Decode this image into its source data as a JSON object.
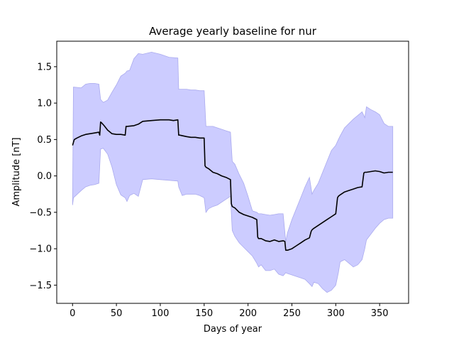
{
  "chart_data": {
    "type": "line",
    "title": "Average yearly baseline for nur",
    "xlabel": "Days of year",
    "ylabel": "Amplitude [nT]",
    "xlim": [
      -18,
      383
    ],
    "ylim": [
      -1.75,
      1.85
    ],
    "xticks": [
      0,
      50,
      100,
      150,
      200,
      250,
      300,
      350
    ],
    "yticks": [
      -1.5,
      -1.0,
      -0.5,
      0.0,
      0.5,
      1.0,
      1.5
    ],
    "ytick_labels": [
      "−1.5",
      "−1.0",
      "−0.5",
      "0.0",
      "0.5",
      "1.0",
      "1.5"
    ],
    "grid": false,
    "colors": {
      "mean": "#000000",
      "band": "#ccccff",
      "band_edge": "#aaaaee"
    },
    "series": [
      {
        "role": "mean",
        "x": [
          0,
          2,
          5,
          10,
          15,
          20,
          25,
          30,
          31,
          32,
          33,
          36,
          40,
          45,
          50,
          55,
          60,
          61,
          62,
          70,
          75,
          80,
          90,
          100,
          110,
          115,
          120,
          121,
          122,
          130,
          135,
          140,
          145,
          150,
          151,
          152,
          155,
          160,
          165,
          170,
          175,
          180,
          181,
          182,
          185,
          190,
          195,
          200,
          205,
          210,
          211,
          212,
          215,
          220,
          225,
          230,
          235,
          240,
          242,
          243,
          245,
          250,
          255,
          260,
          265,
          270,
          272,
          273,
          275,
          280,
          285,
          290,
          295,
          300,
          302,
          303,
          305,
          310,
          315,
          320,
          325,
          330,
          332,
          333,
          335,
          340,
          345,
          350,
          355,
          360,
          365
        ],
        "y": [
          0.42,
          0.5,
          0.52,
          0.55,
          0.57,
          0.58,
          0.59,
          0.6,
          0.56,
          0.74,
          0.73,
          0.69,
          0.63,
          0.58,
          0.57,
          0.57,
          0.56,
          0.68,
          0.68,
          0.69,
          0.71,
          0.75,
          0.76,
          0.77,
          0.77,
          0.76,
          0.77,
          0.56,
          0.56,
          0.54,
          0.53,
          0.53,
          0.52,
          0.52,
          0.14,
          0.12,
          0.1,
          0.05,
          0.03,
          0.0,
          -0.02,
          -0.05,
          -0.38,
          -0.42,
          -0.44,
          -0.5,
          -0.53,
          -0.55,
          -0.57,
          -0.6,
          -0.84,
          -0.86,
          -0.86,
          -0.89,
          -0.9,
          -0.88,
          -0.9,
          -0.89,
          -0.9,
          -1.02,
          -1.02,
          -1.0,
          -0.96,
          -0.92,
          -0.88,
          -0.85,
          -0.76,
          -0.74,
          -0.72,
          -0.68,
          -0.64,
          -0.6,
          -0.56,
          -0.52,
          -0.3,
          -0.28,
          -0.26,
          -0.22,
          -0.2,
          -0.18,
          -0.16,
          -0.15,
          0.04,
          0.05,
          0.05,
          0.06,
          0.07,
          0.06,
          0.04,
          0.05,
          0.05
        ]
      },
      {
        "role": "band",
        "x": [
          0,
          1,
          10,
          15,
          20,
          25,
          30,
          32,
          35,
          40,
          45,
          50,
          55,
          60,
          62,
          65,
          70,
          75,
          80,
          90,
          100,
          110,
          120,
          121,
          125,
          130,
          135,
          140,
          145,
          150,
          152,
          155,
          160,
          165,
          170,
          175,
          180,
          182,
          185,
          190,
          195,
          200,
          205,
          210,
          212,
          215,
          220,
          225,
          230,
          235,
          240,
          243,
          245,
          250,
          255,
          260,
          265,
          270,
          273,
          275,
          280,
          285,
          290,
          295,
          300,
          303,
          305,
          310,
          315,
          320,
          325,
          330,
          333,
          335,
          340,
          345,
          350,
          355,
          360,
          365
        ],
        "upper": [
          -0.4,
          1.22,
          1.21,
          1.26,
          1.27,
          1.27,
          1.26,
          1.05,
          1.01,
          1.04,
          1.15,
          1.25,
          1.37,
          1.41,
          1.44,
          1.45,
          1.61,
          1.68,
          1.67,
          1.7,
          1.67,
          1.63,
          1.62,
          1.19,
          1.19,
          1.19,
          1.18,
          1.18,
          1.17,
          1.17,
          0.68,
          0.68,
          0.68,
          0.66,
          0.64,
          0.62,
          0.6,
          0.2,
          0.16,
          0.02,
          -0.1,
          -0.28,
          -0.48,
          -0.5,
          -0.52,
          -0.52,
          -0.53,
          -0.54,
          -0.53,
          -0.52,
          -0.52,
          -0.9,
          -0.78,
          -0.6,
          -0.45,
          -0.3,
          -0.15,
          -0.02,
          -0.25,
          -0.2,
          -0.1,
          0.05,
          0.2,
          0.35,
          0.42,
          0.5,
          0.55,
          0.66,
          0.72,
          0.78,
          0.83,
          0.88,
          0.8,
          0.95,
          0.91,
          0.88,
          0.84,
          0.72,
          0.68,
          0.68
        ],
        "lower": [
          -0.4,
          -0.3,
          -0.2,
          -0.15,
          -0.13,
          -0.12,
          -0.1,
          0.37,
          0.38,
          0.3,
          0.12,
          -0.12,
          -0.26,
          -0.3,
          -0.35,
          -0.27,
          -0.24,
          -0.28,
          -0.05,
          -0.04,
          -0.05,
          -0.06,
          -0.07,
          -0.15,
          -0.27,
          -0.25,
          -0.25,
          -0.25,
          -0.27,
          -0.3,
          -0.5,
          -0.45,
          -0.42,
          -0.4,
          -0.36,
          -0.32,
          -0.28,
          -0.75,
          -0.83,
          -0.92,
          -0.98,
          -1.04,
          -1.1,
          -1.2,
          -1.25,
          -1.22,
          -1.3,
          -1.3,
          -1.28,
          -1.35,
          -1.37,
          -1.33,
          -1.34,
          -1.36,
          -1.38,
          -1.4,
          -1.42,
          -1.48,
          -1.52,
          -1.46,
          -1.48,
          -1.55,
          -1.6,
          -1.57,
          -1.5,
          -1.33,
          -1.18,
          -1.15,
          -1.2,
          -1.25,
          -1.22,
          -1.15,
          -1.0,
          -0.88,
          -0.8,
          -0.72,
          -0.65,
          -0.6,
          -0.58,
          -0.58
        ]
      }
    ]
  }
}
